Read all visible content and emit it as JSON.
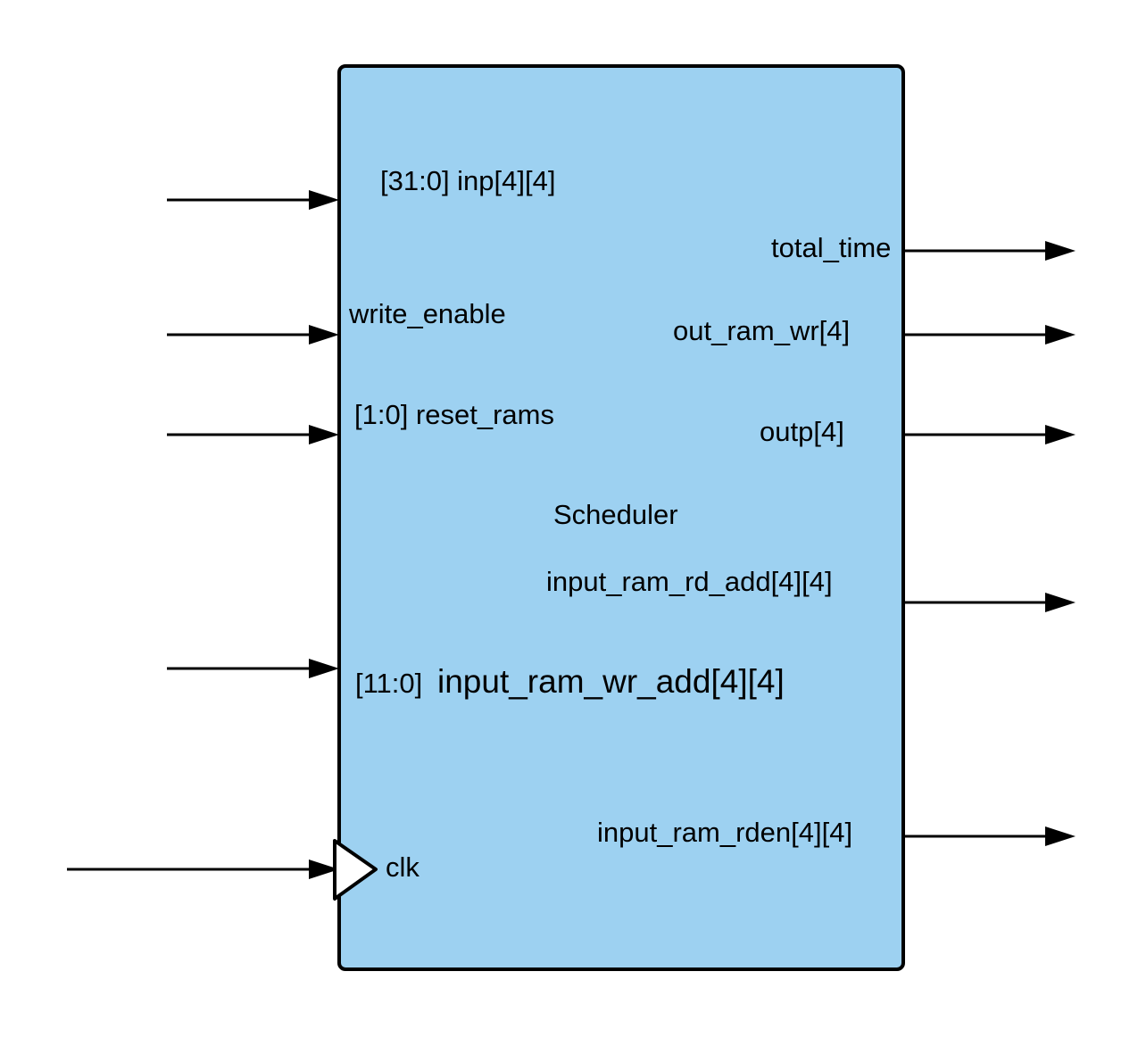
{
  "block": {
    "name": "Scheduler",
    "fill_color": "#9dd1f1",
    "border_color": "#000000"
  },
  "inputs": {
    "inp": "[31:0] inp[4][4]",
    "write_enable": "write_enable",
    "reset_rams": "[1:0] reset_rams",
    "wr_add_width": "[11:0]",
    "wr_add_name": "input_ram_wr_add[4][4]",
    "clk": "clk"
  },
  "outputs": {
    "total_time": "total_time",
    "out_ram_wr": "out_ram_wr[4]",
    "outp": "outp[4]",
    "input_ram_rd_add": "input_ram_rd_add[4][4]",
    "input_ram_rden": "input_ram_rden[4][4]"
  }
}
